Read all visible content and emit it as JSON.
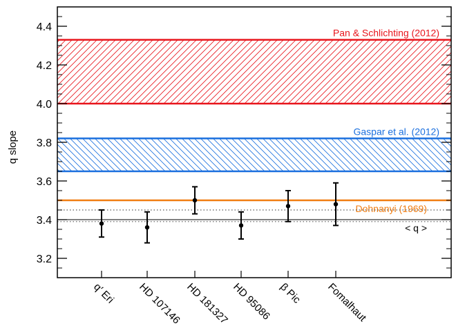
{
  "chart_data": {
    "type": "scatter",
    "xlabel": "",
    "ylabel": "q slope",
    "ylim": [
      3.1,
      4.5
    ],
    "yticks": [
      "3.2",
      "3.4",
      "3.6",
      "3.8",
      "4.0",
      "4.2",
      "4.4"
    ],
    "grid": false,
    "categories": [
      "q′ Eri",
      "HD 107146",
      "HD 181327",
      "HD 95086",
      "β Pic",
      "Fomalhaut"
    ],
    "series": [
      {
        "values": [
          3.38,
          3.36,
          3.5,
          3.37,
          3.47,
          3.48
        ],
        "err_low": [
          3.31,
          3.28,
          3.43,
          3.3,
          3.39,
          3.37
        ],
        "err_high": [
          3.45,
          3.44,
          3.57,
          3.44,
          3.55,
          3.59
        ]
      }
    ],
    "bands": [
      {
        "label": "Pan & Schlichting (2012)",
        "low": 4.0,
        "high": 4.33,
        "color": "#e8141b",
        "hatch": "forward"
      },
      {
        "label": "Gaspar et al. (2012)",
        "low": 3.65,
        "high": 3.82,
        "color": "#1a6fde",
        "hatch": "backward"
      }
    ],
    "lines": [
      {
        "label": "Dohnanyi (1969)",
        "y": 3.5,
        "color": "#f07d12",
        "style": "solid"
      },
      {
        "label": "< q >",
        "y": 3.4,
        "color": "#000000",
        "style": "solid"
      },
      {
        "label": "",
        "y": 3.45,
        "color": "#555555",
        "style": "dotted"
      },
      {
        "label": "",
        "y": 3.39,
        "color": "#555555",
        "style": "dotted"
      }
    ]
  }
}
